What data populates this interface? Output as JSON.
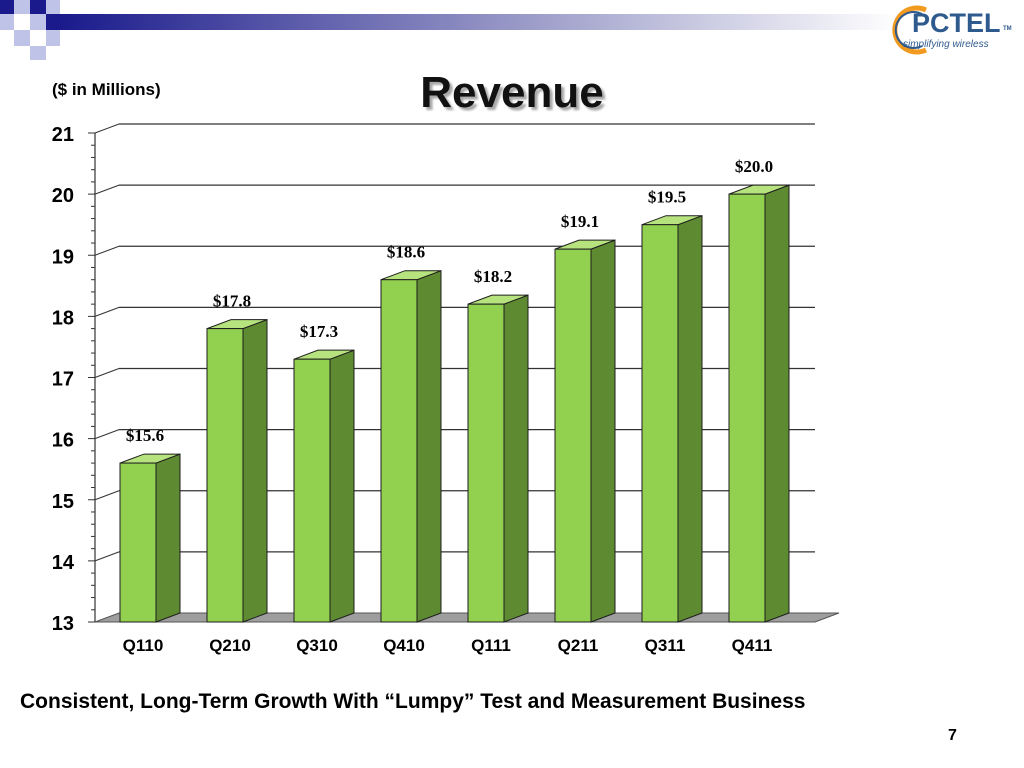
{
  "slide": {
    "title": "Revenue",
    "units_label": "($ in Millions)",
    "tagline": "Consistent, Long-Term Growth With “Lumpy” Test  and Measurement Business",
    "page_number": "7",
    "logo": {
      "name": "PCTEL",
      "tm": "TM",
      "tagline": "simplifying wireless"
    }
  },
  "chart_data": {
    "type": "bar",
    "categories": [
      "Q110",
      "Q210",
      "Q310",
      "Q410",
      "Q111",
      "Q211",
      "Q311",
      "Q411"
    ],
    "values": [
      15.6,
      17.8,
      17.3,
      18.6,
      18.2,
      19.1,
      19.5,
      20.0
    ],
    "data_labels": [
      "$15.6",
      "$17.8",
      "$17.3",
      "$18.6",
      "$18.2",
      "$19.1",
      "$19.5",
      "$20.0"
    ],
    "y_ticks": [
      "13",
      "14",
      "15",
      "16",
      "17",
      "18",
      "19",
      "20",
      "21"
    ],
    "ylim": [
      13,
      21
    ],
    "grid": true,
    "colors": {
      "bar_front": "#92d050",
      "bar_side": "#5e8a32",
      "bar_top": "#b7e37e",
      "floor": "#9e9e9e"
    }
  }
}
